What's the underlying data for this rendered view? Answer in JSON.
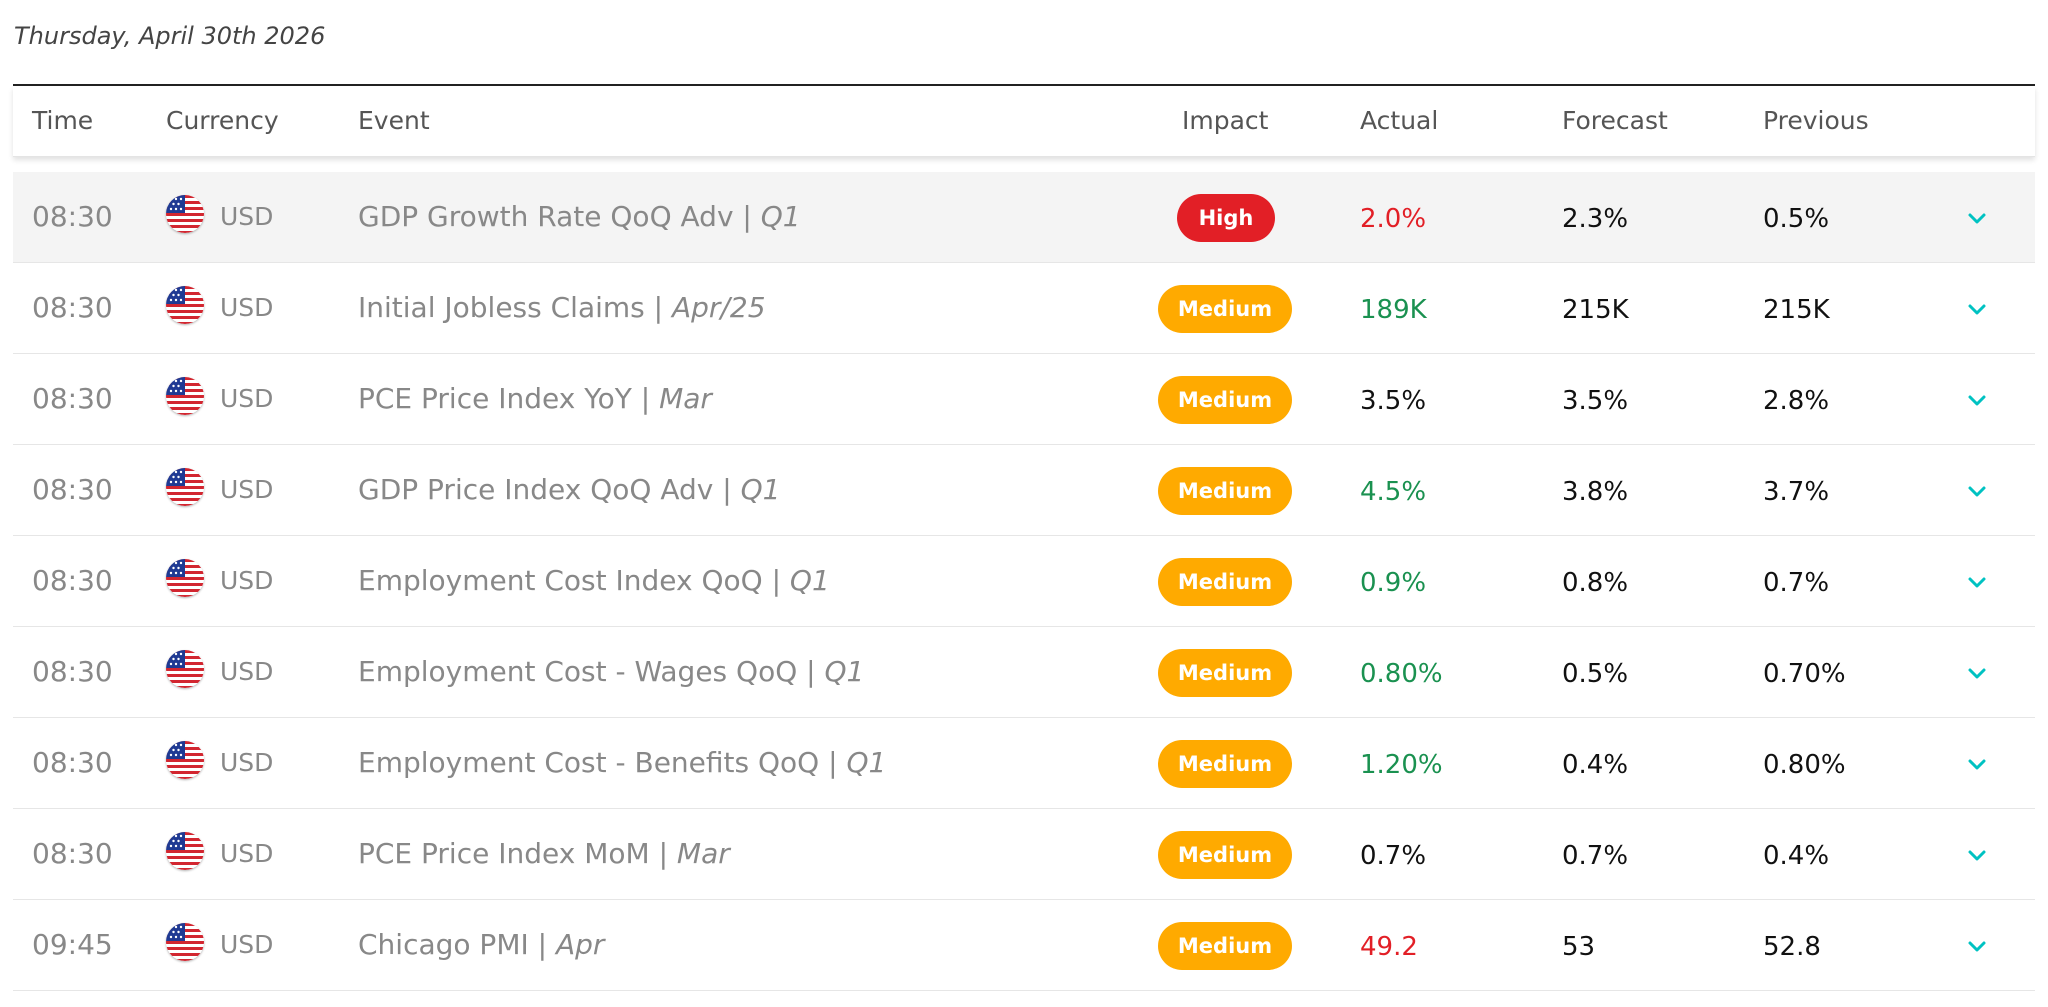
{
  "date_heading": "Thursday, April 30th 2026",
  "columns": {
    "time": "Time",
    "currency": "Currency",
    "event": "Event",
    "impact": "Impact",
    "actual": "Actual",
    "forecast": "Forecast",
    "previous": "Previous"
  },
  "colors": {
    "high_impact": "#e21f26",
    "medium_impact": "#ffaa00",
    "actual_red": "#e21f26",
    "actual_green": "#1a9150",
    "chevron": "#00c2c2"
  },
  "events": [
    {
      "time": "08:30",
      "currency": "USD",
      "flag": "us-flag-icon",
      "event": "GDP Growth Rate QoQ Adv",
      "period": "Q1",
      "impact": "High",
      "actual": "2.0%",
      "actual_tone": "red",
      "forecast": "2.3%",
      "previous": "0.5%",
      "highlighted": true
    },
    {
      "time": "08:30",
      "currency": "USD",
      "flag": "us-flag-icon",
      "event": "Initial Jobless Claims",
      "period": "Apr/25",
      "impact": "Medium",
      "actual": "189K",
      "actual_tone": "green",
      "forecast": "215K",
      "previous": "215K",
      "highlighted": false
    },
    {
      "time": "08:30",
      "currency": "USD",
      "flag": "us-flag-icon",
      "event": "PCE Price Index YoY",
      "period": "Mar",
      "impact": "Medium",
      "actual": "3.5%",
      "actual_tone": "neutral",
      "forecast": "3.5%",
      "previous": "2.8%",
      "highlighted": false
    },
    {
      "time": "08:30",
      "currency": "USD",
      "flag": "us-flag-icon",
      "event": "GDP Price Index QoQ Adv",
      "period": "Q1",
      "impact": "Medium",
      "actual": "4.5%",
      "actual_tone": "green",
      "forecast": "3.8%",
      "previous": "3.7%",
      "highlighted": false
    },
    {
      "time": "08:30",
      "currency": "USD",
      "flag": "us-flag-icon",
      "event": "Employment Cost Index QoQ",
      "period": "Q1",
      "impact": "Medium",
      "actual": "0.9%",
      "actual_tone": "green",
      "forecast": "0.8%",
      "previous": "0.7%",
      "highlighted": false
    },
    {
      "time": "08:30",
      "currency": "USD",
      "flag": "us-flag-icon",
      "event": "Employment Cost - Wages QoQ",
      "period": "Q1",
      "impact": "Medium",
      "actual": "0.80%",
      "actual_tone": "green",
      "forecast": "0.5%",
      "previous": "0.70%",
      "highlighted": false
    },
    {
      "time": "08:30",
      "currency": "USD",
      "flag": "us-flag-icon",
      "event": "Employment Cost - Benefits QoQ",
      "period": "Q1",
      "impact": "Medium",
      "actual": "1.20%",
      "actual_tone": "green",
      "forecast": "0.4%",
      "previous": "0.80%",
      "highlighted": false
    },
    {
      "time": "08:30",
      "currency": "USD",
      "flag": "us-flag-icon",
      "event": "PCE Price Index MoM",
      "period": "Mar",
      "impact": "Medium",
      "actual": "0.7%",
      "actual_tone": "neutral",
      "forecast": "0.7%",
      "previous": "0.4%",
      "highlighted": false
    },
    {
      "time": "09:45",
      "currency": "USD",
      "flag": "us-flag-icon",
      "event": "Chicago PMI",
      "period": "Apr",
      "impact": "Medium",
      "actual": "49.2",
      "actual_tone": "red",
      "forecast": "53",
      "previous": "52.8",
      "highlighted": false
    }
  ]
}
